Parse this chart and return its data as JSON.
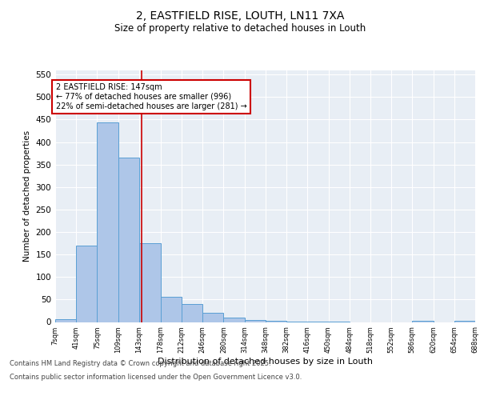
{
  "title_line1": "2, EASTFIELD RISE, LOUTH, LN11 7XA",
  "title_line2": "Size of property relative to detached houses in Louth",
  "xlabel": "Distribution of detached houses by size in Louth",
  "ylabel": "Number of detached properties",
  "bar_values": [
    7,
    170,
    443,
    365,
    176,
    56,
    40,
    20,
    10,
    4,
    3,
    1,
    1,
    1,
    0,
    0,
    0,
    3,
    0,
    3
  ],
  "bin_edges": [
    7,
    41,
    75,
    109,
    143,
    178,
    212,
    246,
    280,
    314,
    348,
    382,
    416,
    450,
    484,
    518,
    552,
    586,
    620,
    654,
    688
  ],
  "bar_color": "#aec6e8",
  "bar_edge_color": "#5a9fd4",
  "property_size": 147,
  "vline_color": "#cc0000",
  "annotation_text": "2 EASTFIELD RISE: 147sqm\n← 77% of detached houses are smaller (996)\n22% of semi-detached houses are larger (281) →",
  "annotation_box_color": "#cc0000",
  "ylim": [
    0,
    560
  ],
  "yticks": [
    0,
    50,
    100,
    150,
    200,
    250,
    300,
    350,
    400,
    450,
    500,
    550
  ],
  "background_color": "#e8eef5",
  "grid_color": "#ffffff",
  "footer_line1": "Contains HM Land Registry data © Crown copyright and database right 2025.",
  "footer_line2": "Contains public sector information licensed under the Open Government Licence v3.0."
}
